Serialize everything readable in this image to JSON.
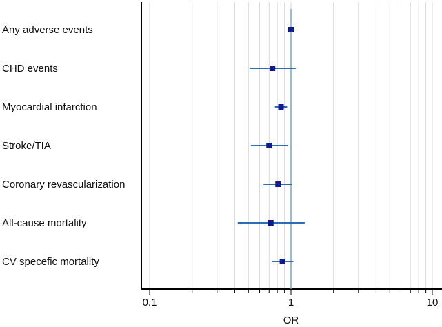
{
  "chart_data": {
    "type": "forest",
    "xscale": "log",
    "xlim": [
      0.07,
      12
    ],
    "xlabel": "OR",
    "xticks": [
      0.1,
      1,
      10
    ],
    "xtick_labels": [
      "0.1",
      "1",
      "10"
    ],
    "reference_line": 1,
    "grid": true,
    "colors": {
      "point": "#0d1b8c",
      "ci": "#2a6db5",
      "reference": "#6fa8d6",
      "grid": "#d9d9d9",
      "axis": "#000000"
    },
    "rows": [
      {
        "label": "Any adverse events",
        "or": 1.0,
        "lower": 0.97,
        "upper": 1.03
      },
      {
        "label": "CHD events",
        "or": 0.74,
        "lower": 0.51,
        "upper": 1.08
      },
      {
        "label": "Myocardial infarction",
        "or": 0.85,
        "lower": 0.77,
        "upper": 0.94
      },
      {
        "label": "Stroke/TIA",
        "or": 0.7,
        "lower": 0.52,
        "upper": 0.95
      },
      {
        "label": "Coronary revascularization",
        "or": 0.81,
        "lower": 0.64,
        "upper": 1.02
      },
      {
        "label": "All-cause mortality",
        "or": 0.72,
        "lower": 0.42,
        "upper": 1.25
      },
      {
        "label": "CV specefic mortality",
        "or": 0.87,
        "lower": 0.73,
        "upper": 1.04
      }
    ]
  }
}
